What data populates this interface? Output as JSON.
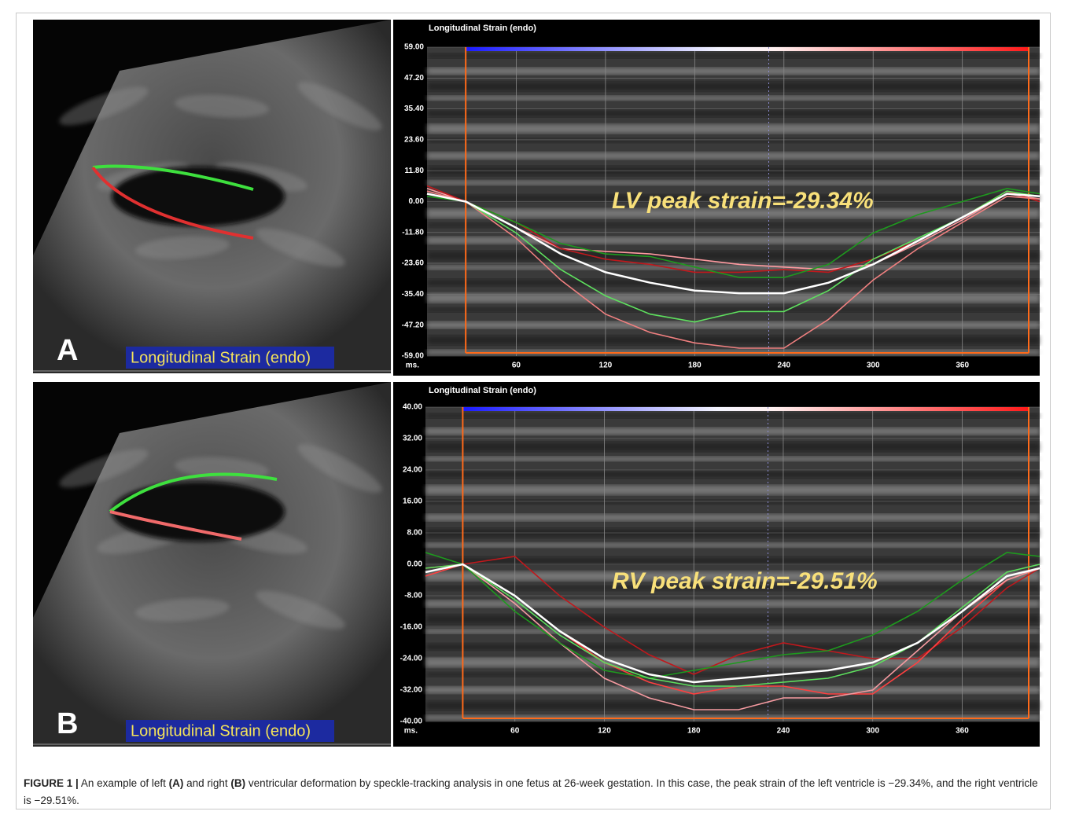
{
  "panels": [
    {
      "label": "A",
      "image_label": "Longitudinal Strain (endo)",
      "chart": {
        "type": "line",
        "title": "Longitudinal Strain (endo)",
        "annotation": "LV peak strain=-29.34%",
        "x_unit": "ms.",
        "x": [
          0,
          26,
          60,
          90,
          120,
          150,
          180,
          210,
          240,
          270,
          300,
          330,
          360,
          390,
          412
        ],
        "series": [
          {
            "color": "#ff9aa0",
            "values": [
              5,
              0,
              -10,
              -18,
              -19,
              -20,
              -22,
              -24,
              -25,
              -26,
              -24,
              -16,
              -7,
              3,
              1
            ]
          },
          {
            "color": "#c0181c",
            "values": [
              6,
              0,
              -8,
              -18,
              -22,
              -24,
              -27,
              -27,
              -26,
              -27,
              -22,
              -15,
              -6,
              4,
              0
            ]
          },
          {
            "color": "#f08080",
            "values": [
              4,
              0,
              -14,
              -30,
              -43,
              -50,
              -54,
              -56,
              -56,
              -45,
              -30,
              -18,
              -8,
              2,
              1
            ]
          },
          {
            "color": "#1e9a1e",
            "values": [
              2,
              0,
              -8,
              -16,
              -20,
              -21,
              -25,
              -29,
              -29,
              -24,
              -12,
              -5,
              0,
              5,
              3
            ]
          },
          {
            "color": "#5ee05e",
            "values": [
              3,
              0,
              -12,
              -26,
              -36,
              -43,
              -46,
              -42,
              -42,
              -34,
              -22,
              -14,
              -6,
              4,
              2
            ]
          },
          {
            "color": "#ffffff",
            "values": [
              3,
              0,
              -10,
              -20,
              -27,
              -31,
              -34,
              -35,
              -35,
              -31,
              -24,
              -15,
              -6,
              3,
              2
            ]
          }
        ],
        "xlim": [
          0,
          412
        ],
        "ylim": [
          -59,
          59
        ],
        "xticks": [
          60,
          120,
          180,
          240,
          300,
          360
        ],
        "yticks": [
          {
            "value": 59,
            "label": "59.00"
          },
          {
            "value": 47.2,
            "label": "47.20"
          },
          {
            "value": 35.4,
            "label": "35.40"
          },
          {
            "value": 23.6,
            "label": "23.60"
          },
          {
            "value": 11.8,
            "label": "11.80"
          },
          {
            "value": 0,
            "label": "0.00"
          },
          {
            "value": -11.8,
            "label": "-11.80"
          },
          {
            "value": -23.6,
            "label": "-23.60"
          },
          {
            "value": -35.4,
            "label": "-35.40"
          },
          {
            "value": -47.2,
            "label": "-47.20"
          },
          {
            "value": -59,
            "label": "-59.00"
          }
        ],
        "grid": true
      }
    },
    {
      "label": "B",
      "image_label": "Longitudinal Strain (endo)",
      "chart": {
        "type": "line",
        "title": "Longitudinal Strain (endo)",
        "annotation": "RV peak strain=-29.51%",
        "x_unit": "ms.",
        "x": [
          0,
          25,
          60,
          90,
          120,
          150,
          180,
          210,
          240,
          270,
          300,
          330,
          360,
          390,
          412
        ],
        "series": [
          {
            "color": "#c0181c",
            "values": [
              -1,
              0,
              2,
              -8,
              -16,
              -23,
              -28,
              -23,
              -20,
              -22,
              -24,
              -24,
              -16,
              -6,
              -1
            ]
          },
          {
            "color": "#ff4040",
            "values": [
              -3,
              0,
              -8,
              -17,
              -25,
              -30,
              -33,
              -31,
              -31,
              -33,
              -33,
              -25,
              -14,
              -4,
              -1
            ]
          },
          {
            "color": "#f59aa0",
            "values": [
              -2,
              0,
              -10,
              -20,
              -29,
              -34,
              -37,
              -37,
              -34,
              -34,
              -32,
              -22,
              -12,
              -4,
              -1
            ]
          },
          {
            "color": "#1e9a1e",
            "values": [
              3,
              0,
              -12,
              -20,
              -27,
              -29,
              -27,
              -25,
              -23,
              -22,
              -18,
              -12,
              -4,
              3,
              2
            ]
          },
          {
            "color": "#5ee05e",
            "values": [
              -1,
              0,
              -9,
              -18,
              -25,
              -29,
              -31,
              -31,
              -30,
              -29,
              -26,
              -20,
              -11,
              -2,
              0
            ]
          },
          {
            "color": "#ffffff",
            "values": [
              -2,
              0,
              -8,
              -17,
              -24,
              -28,
              -30,
              -29,
              -28,
              -27,
              -25,
              -20,
              -12,
              -3,
              -1
            ]
          }
        ],
        "xlim": [
          0,
          412
        ],
        "ylim": [
          -40,
          40
        ],
        "xticks": [
          60,
          120,
          180,
          240,
          300,
          360
        ],
        "yticks": [
          {
            "value": 40,
            "label": "40.00"
          },
          {
            "value": 32,
            "label": "32.00"
          },
          {
            "value": 24,
            "label": "24.00"
          },
          {
            "value": 16,
            "label": "16.00"
          },
          {
            "value": 8,
            "label": "8.00"
          },
          {
            "value": 0,
            "label": "0.00"
          },
          {
            "value": -8,
            "label": "-8.00"
          },
          {
            "value": -16,
            "label": "-16.00"
          },
          {
            "value": -24,
            "label": "-24.00"
          },
          {
            "value": -32,
            "label": "-32.00"
          },
          {
            "value": -40,
            "label": "-40.00"
          }
        ],
        "grid": true
      }
    }
  ],
  "caption": {
    "label": "FIGURE 1 |",
    "parts": [
      "An example of left ",
      "(A)",
      " and right ",
      "(B)",
      " ventricular deformation by speckle-tracking analysis in one fetus at 26-week gestation. In this case, the peak strain of the left ventricle is −29.34%, and the right ventricle is −29.51%."
    ]
  }
}
